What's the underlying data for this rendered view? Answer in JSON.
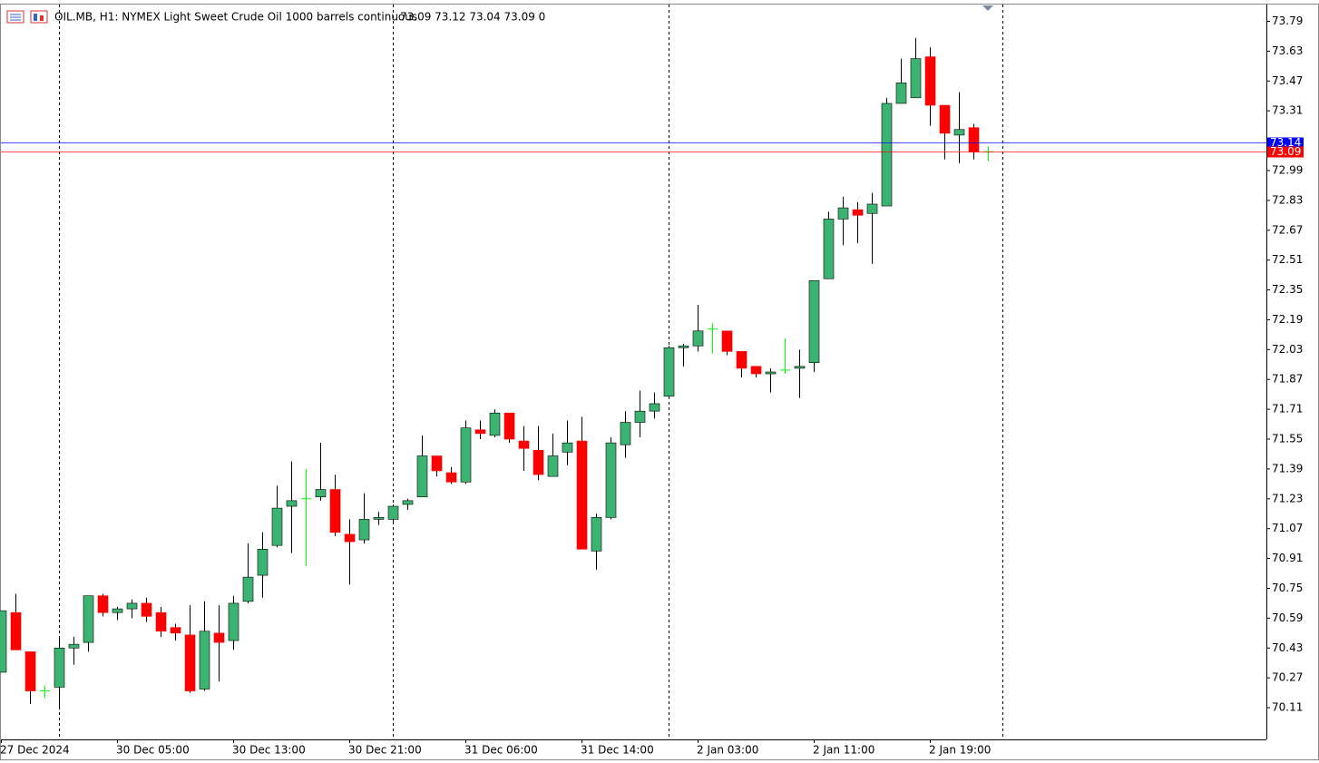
{
  "chart_data": {
    "type": "candlestick",
    "title": "OIL.MB, H1:  NYMEX Light Sweet Crude Oil 1000 barrels continuous",
    "quote_text": "73.09 73.12 73.04 73.09  0",
    "categories": [
      "27 Dec 2024",
      null,
      null,
      null,
      null,
      null,
      null,
      null,
      "30 Dec 05:00",
      null,
      null,
      null,
      null,
      null,
      null,
      null,
      "30 Dec 13:00",
      null,
      null,
      null,
      null,
      null,
      null,
      null,
      "30 Dec 21:00",
      null,
      null,
      null,
      null,
      null,
      null,
      null,
      "31 Dec 06:00",
      null,
      null,
      null,
      null,
      null,
      null,
      null,
      "31 Dec 14:00",
      null,
      null,
      null,
      null,
      null,
      null,
      null,
      "2 Jan 03:00",
      null,
      null,
      null,
      null,
      null,
      null,
      null,
      "2 Jan 11:00",
      null,
      null,
      null,
      null,
      null,
      null,
      null,
      "2 Jan 19:00",
      null,
      null,
      null,
      null
    ],
    "open": [
      70.3,
      70.62,
      70.41,
      70.2,
      70.22,
      70.43,
      70.46,
      70.71,
      70.62,
      70.64,
      70.67,
      70.62,
      70.54,
      70.5,
      70.21,
      70.51,
      70.47,
      70.68,
      70.82,
      70.98,
      71.19,
      71.23,
      71.24,
      71.28,
      71.04,
      71.01,
      71.12,
      71.12,
      71.2,
      71.24,
      71.46,
      71.37,
      71.32,
      71.6,
      71.57,
      71.69,
      71.54,
      71.49,
      71.35,
      71.48,
      71.54,
      70.95,
      71.13,
      71.52,
      71.64,
      71.7,
      71.78,
      72.04,
      72.05,
      72.14,
      72.13,
      72.02,
      71.94,
      71.9,
      71.92,
      71.93,
      71.96,
      72.41,
      72.73,
      72.78,
      72.76,
      72.8,
      73.35,
      73.38,
      73.6,
      73.34,
      73.18,
      73.22,
      73.09
    ],
    "high": [
      70.63,
      70.72,
      70.41,
      70.23,
      70.49,
      70.49,
      70.71,
      70.72,
      70.65,
      70.69,
      70.7,
      70.65,
      70.56,
      70.66,
      70.68,
      70.66,
      70.71,
      70.99,
      71.05,
      71.3,
      71.43,
      71.39,
      71.53,
      71.36,
      71.12,
      71.26,
      71.16,
      71.2,
      71.23,
      71.57,
      71.46,
      71.4,
      71.65,
      71.65,
      71.71,
      71.69,
      71.62,
      71.62,
      71.58,
      71.65,
      71.67,
      71.15,
      71.56,
      71.7,
      71.81,
      71.8,
      72.05,
      72.06,
      72.27,
      72.17,
      72.13,
      72.02,
      71.94,
      71.93,
      72.09,
      72.03,
      72.4,
      72.77,
      72.85,
      72.82,
      72.87,
      73.38,
      73.59,
      73.7,
      73.65,
      73.34,
      73.41,
      73.24,
      73.12
    ],
    "low": [
      70.3,
      70.42,
      70.13,
      70.16,
      70.11,
      70.34,
      70.41,
      70.6,
      70.58,
      70.59,
      70.57,
      70.49,
      70.47,
      70.19,
      70.2,
      70.25,
      70.42,
      70.67,
      70.7,
      70.97,
      70.94,
      70.87,
      71.22,
      71.03,
      70.77,
      70.99,
      71.09,
      71.1,
      71.17,
      71.24,
      71.35,
      71.31,
      71.31,
      71.55,
      71.56,
      71.53,
      71.38,
      71.33,
      71.35,
      71.41,
      70.96,
      70.85,
      71.12,
      71.45,
      71.56,
      71.66,
      71.78,
      71.94,
      72.02,
      72.01,
      72.0,
      71.88,
      71.88,
      71.8,
      71.9,
      71.77,
      71.91,
      72.41,
      72.59,
      72.6,
      72.49,
      72.8,
      73.35,
      73.38,
      73.23,
      73.05,
      73.03,
      73.05,
      73.04
    ],
    "close": [
      70.63,
      70.42,
      70.2,
      70.2,
      70.43,
      70.45,
      70.71,
      70.62,
      70.64,
      70.67,
      70.6,
      70.52,
      70.51,
      70.2,
      70.52,
      70.46,
      70.67,
      70.81,
      70.96,
      71.18,
      71.22,
      71.23,
      71.28,
      71.05,
      71.0,
      71.12,
      71.13,
      71.19,
      71.22,
      71.46,
      71.38,
      71.32,
      71.61,
      71.58,
      71.69,
      71.55,
      71.5,
      71.36,
      71.46,
      71.53,
      70.96,
      71.13,
      71.53,
      71.64,
      71.7,
      71.74,
      72.04,
      72.05,
      72.13,
      72.14,
      72.02,
      71.93,
      71.9,
      71.91,
      71.92,
      71.94,
      72.4,
      72.73,
      72.79,
      72.75,
      72.81,
      73.35,
      73.46,
      73.59,
      73.34,
      73.19,
      73.21,
      73.09,
      73.09
    ],
    "up_color": "#3cb371",
    "down_color": "#ff0000",
    "doji_color": "#00ff00",
    "ylim": [
      69.94,
      73.88
    ],
    "yticks": [
      70.11,
      70.27,
      70.43,
      70.59,
      70.75,
      70.91,
      71.07,
      71.23,
      71.39,
      71.55,
      71.71,
      71.87,
      72.03,
      72.19,
      72.35,
      72.51,
      72.67,
      72.83,
      72.99,
      73.31,
      73.47,
      73.63,
      73.79
    ],
    "price_lines": [
      {
        "value": 73.14,
        "color": "#0000ff"
      },
      {
        "value": 73.09,
        "color": "#ff0000"
      }
    ]
  }
}
